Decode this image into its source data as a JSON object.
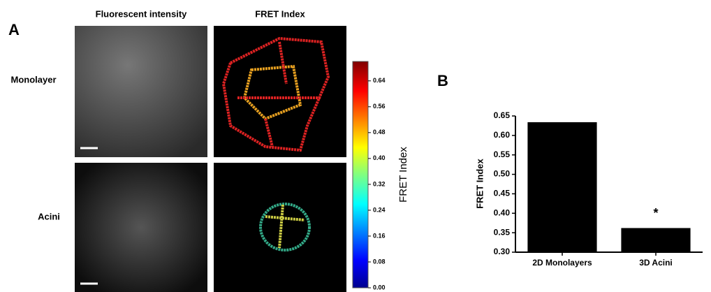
{
  "panel_labels": [
    "A",
    "B"
  ],
  "figure_a": {
    "column_headers": [
      "Fluorescent intensity",
      "FRET Index"
    ],
    "row_labels": [
      "Monolayer",
      "Acini"
    ],
    "colorbar": {
      "label": "FRET Index",
      "lim": [
        0,
        0.7
      ],
      "ticks": [
        {
          "value": 0,
          "label": "0.00"
        },
        0.08,
        0.16,
        0.24,
        0.32,
        {
          "value": 0.4,
          "label": "0.40"
        },
        0.48,
        0.56,
        0.64
      ]
    }
  },
  "chart_data": {
    "type": "bar",
    "y_label": "FRET Index",
    "categories": [
      "2D Monolayers",
      "3D Acini"
    ],
    "values": [
      0.634,
      0.362
    ],
    "color": "#000000",
    "annotations": [
      {
        "category": 1,
        "text": "*"
      }
    ],
    "ylim": [
      0.3,
      0.65
    ],
    "yticks": [
      {
        "value": 0.3,
        "label": "0.30"
      },
      0.35,
      {
        "value": 0.4,
        "label": "0.40"
      },
      0.45,
      {
        "value": 0.5,
        "label": "0.50"
      },
      0.55,
      {
        "value": 0.6,
        "label": "0.60"
      },
      0.65
    ]
  }
}
